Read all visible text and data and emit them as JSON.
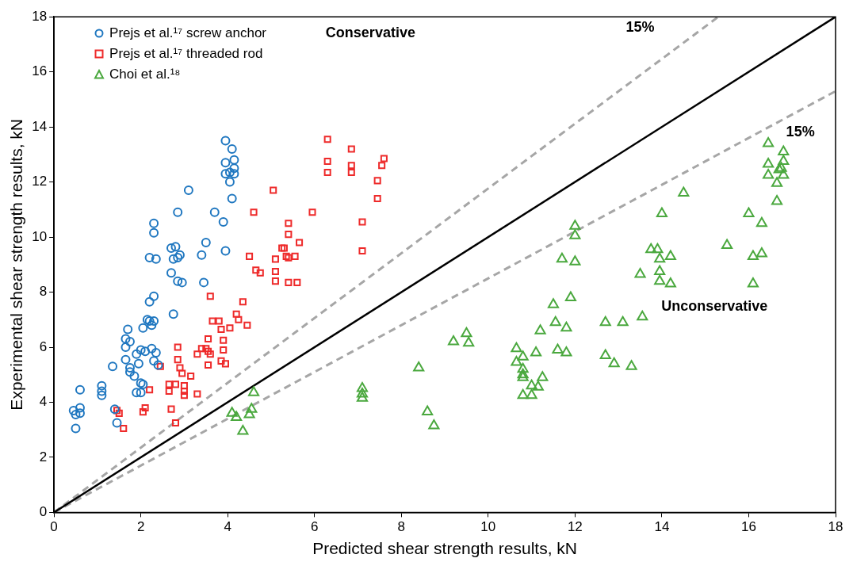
{
  "chart_data": {
    "type": "scatter",
    "xlabel": "Predicted shear strength results, kN",
    "ylabel": "Experimental shear strength results, kN",
    "xlim": [
      0,
      18
    ],
    "ylim": [
      0,
      18
    ],
    "xticks": [
      0,
      2,
      4,
      6,
      8,
      10,
      12,
      14,
      16,
      18
    ],
    "yticks": [
      0,
      2,
      4,
      6,
      8,
      10,
      12,
      14,
      16,
      18
    ],
    "grid": false,
    "legend": "top left",
    "annotations": [
      "Conservative",
      "15%",
      "15%",
      "Unconservative"
    ],
    "series": [
      {
        "name": "Prejs et al.¹⁷ screw anchor",
        "color": "#1f77c0",
        "marker": "circle",
        "x": [
          0.45,
          0.5,
          0.6,
          0.6,
          0.6,
          0.5,
          1.1,
          1.1,
          1.1,
          1.35,
          1.4,
          1.45,
          1.65,
          1.65,
          1.7,
          1.75,
          1.65,
          1.75,
          1.75,
          1.85,
          1.9,
          1.95,
          1.9,
          2.0,
          2.0,
          2.05,
          2.05,
          2.0,
          2.1,
          2.15,
          2.2,
          2.25,
          2.3,
          2.25,
          2.35,
          2.3,
          2.4,
          2.2,
          2.3,
          2.2,
          2.35,
          2.3,
          2.3,
          2.7,
          2.8,
          2.75,
          2.85,
          2.9,
          2.7,
          2.85,
          2.95,
          2.75,
          2.85,
          3.1,
          3.4,
          3.45,
          3.5,
          3.7,
          3.95,
          3.9,
          3.95,
          3.95,
          3.95,
          4.05,
          4.05,
          4.1,
          4.1,
          4.15,
          4.15,
          4.15
        ],
        "values": [
          3.7,
          3.55,
          3.6,
          3.8,
          4.45,
          3.05,
          4.6,
          4.4,
          4.25,
          5.3,
          3.75,
          3.25,
          6.3,
          6.0,
          6.65,
          6.2,
          5.55,
          5.1,
          5.25,
          4.95,
          5.75,
          5.4,
          4.35,
          4.35,
          4.7,
          4.65,
          6.7,
          5.9,
          5.85,
          7.0,
          6.95,
          6.8,
          6.95,
          5.95,
          5.8,
          5.5,
          5.35,
          7.65,
          7.85,
          9.25,
          9.2,
          10.5,
          10.15,
          9.6,
          9.65,
          9.2,
          9.25,
          9.35,
          8.7,
          8.4,
          8.35,
          7.2,
          10.9,
          11.7,
          9.35,
          8.35,
          9.8,
          10.9,
          9.5,
          10.55,
          12.7,
          13.5,
          12.3,
          12.35,
          12.0,
          11.4,
          13.2,
          12.8,
          12.5,
          12.3
        ]
      },
      {
        "name": "Prejs et al.¹⁷ threaded rod",
        "color": "#ee2a2a",
        "marker": "square",
        "x": [
          1.45,
          1.5,
          1.6,
          2.05,
          2.1,
          2.2,
          2.45,
          2.65,
          2.65,
          2.7,
          2.8,
          2.8,
          2.85,
          2.85,
          2.9,
          2.95,
          3.0,
          3.0,
          3.0,
          3.15,
          3.3,
          3.3,
          3.4,
          3.5,
          3.55,
          3.55,
          3.6,
          3.55,
          3.6,
          3.65,
          3.8,
          3.85,
          3.9,
          3.9,
          3.95,
          3.85,
          4.05,
          4.2,
          4.25,
          4.35,
          4.45,
          4.5,
          4.6,
          4.65,
          4.75,
          5.05,
          5.1,
          5.1,
          5.1,
          5.25,
          5.3,
          5.35,
          5.4,
          5.4,
          5.4,
          5.4,
          5.55,
          5.6,
          5.65,
          5.95,
          6.3,
          6.3,
          6.3,
          6.85,
          6.85,
          6.85,
          7.1,
          7.1,
          7.45,
          7.45,
          7.55,
          7.6
        ],
        "values": [
          3.7,
          3.6,
          3.05,
          3.65,
          3.8,
          4.45,
          5.3,
          4.4,
          4.65,
          3.75,
          3.25,
          4.65,
          6.0,
          5.55,
          5.25,
          5.05,
          4.6,
          4.4,
          4.25,
          4.95,
          4.3,
          5.75,
          5.95,
          5.95,
          5.85,
          5.35,
          5.75,
          6.3,
          7.85,
          6.95,
          6.95,
          6.65,
          6.25,
          5.9,
          5.4,
          5.5,
          6.7,
          7.2,
          7.0,
          7.65,
          6.8,
          9.3,
          10.9,
          8.8,
          8.7,
          11.7,
          9.2,
          8.75,
          8.4,
          9.6,
          9.6,
          9.3,
          9.25,
          10.5,
          10.1,
          8.35,
          9.3,
          8.35,
          9.8,
          10.9,
          12.35,
          12.75,
          13.55,
          13.2,
          12.6,
          12.35,
          10.55,
          9.5,
          11.4,
          12.05,
          12.6,
          12.85
        ]
      },
      {
        "name": "Choi et al.¹⁸",
        "color": "#4aa83e",
        "marker": "triangle",
        "x": [
          4.1,
          4.2,
          4.35,
          4.5,
          4.55,
          4.6,
          7.1,
          7.1,
          7.1,
          8.4,
          8.6,
          8.75,
          9.2,
          9.5,
          9.55,
          10.65,
          10.8,
          10.65,
          10.8,
          10.8,
          10.8,
          11.0,
          11.15,
          11.25,
          10.8,
          11.0,
          11.1,
          11.2,
          11.5,
          11.9,
          11.55,
          11.8,
          11.6,
          11.8,
          11.7,
          12.0,
          12.0,
          12.0,
          12.7,
          13.1,
          13.55,
          12.7,
          12.9,
          13.3,
          13.5,
          13.75,
          13.9,
          13.95,
          13.95,
          13.95,
          14.2,
          14.2,
          14.0,
          14.5,
          15.5,
          16.0,
          16.1,
          16.1,
          16.3,
          16.3,
          16.45,
          16.45,
          16.45,
          16.65,
          16.65,
          16.8,
          16.75,
          16.8,
          16.8,
          16.7
        ],
        "values": [
          3.6,
          3.45,
          2.95,
          3.55,
          3.75,
          4.35,
          4.5,
          4.3,
          4.15,
          5.25,
          3.65,
          3.15,
          6.2,
          6.5,
          6.15,
          5.95,
          5.65,
          5.45,
          5.2,
          5.0,
          4.9,
          4.6,
          4.55,
          4.9,
          4.25,
          4.25,
          5.8,
          6.6,
          7.55,
          7.8,
          6.9,
          6.7,
          5.9,
          5.8,
          9.2,
          9.1,
          10.05,
          10.4,
          6.9,
          6.9,
          7.1,
          5.7,
          5.4,
          5.3,
          8.65,
          9.55,
          9.55,
          9.2,
          8.75,
          8.4,
          9.3,
          8.3,
          10.85,
          11.6,
          9.7,
          10.85,
          9.3,
          8.3,
          10.5,
          9.4,
          13.4,
          12.65,
          12.25,
          11.95,
          11.3,
          13.1,
          12.5,
          12.75,
          12.25,
          12.45
        ]
      },
      {
        "type": "line",
        "color": "#000000",
        "line_style": "solid",
        "x": [
          0,
          18
        ],
        "values": [
          0,
          18
        ]
      },
      {
        "type": "line",
        "color": "#a6a6a6",
        "line_style": "dashed",
        "x": [
          0,
          15.3
        ],
        "values": [
          0,
          18
        ]
      },
      {
        "type": "line",
        "color": "#a6a6a6",
        "line_style": "dashed",
        "x": [
          0,
          18
        ],
        "values": [
          0,
          15.3
        ]
      }
    ]
  }
}
